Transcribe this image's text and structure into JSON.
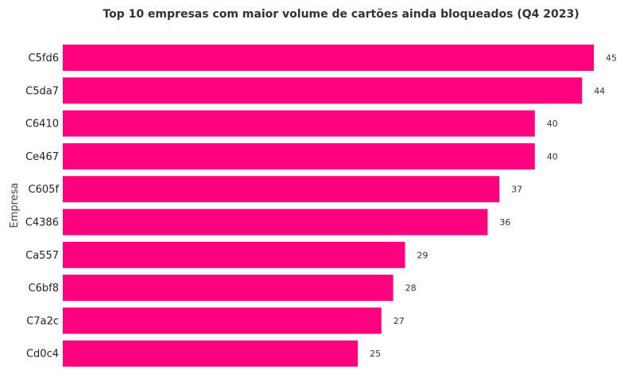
{
  "chart_data": {
    "type": "bar",
    "orientation": "horizontal",
    "title": "Top 10 empresas com maior volume de cartões ainda bloqueados (Q4 2023)",
    "xlabel": "",
    "ylabel": "Empresa",
    "categories": [
      "C5fd6",
      "C5da7",
      "C6410",
      "Ce467",
      "C605f",
      "C4386",
      "Ca557",
      "C6bf8",
      "C7a2c",
      "Cd0c4"
    ],
    "values": [
      45,
      44,
      40,
      40,
      37,
      36,
      29,
      28,
      27,
      25
    ],
    "xlim": [
      0,
      45
    ],
    "grid": false,
    "bar_color": "#ff007f",
    "show_value_labels": true
  }
}
